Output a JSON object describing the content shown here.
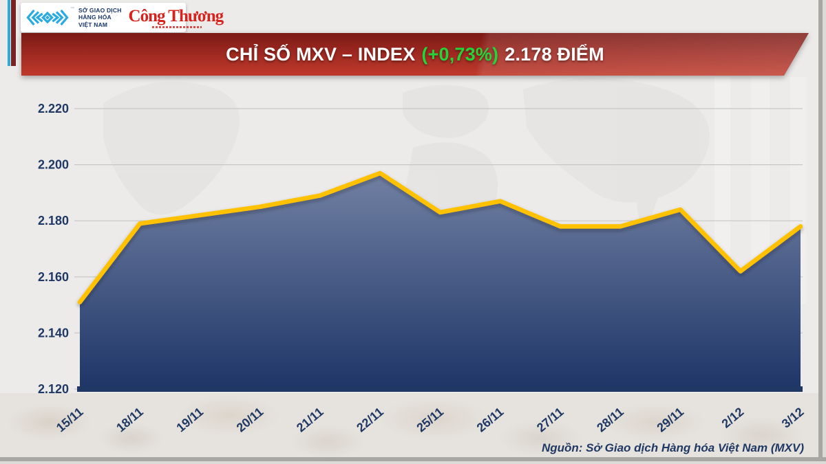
{
  "header": {
    "logo_panel": {
      "mxv_name_lines": [
        "SỞ GIAO DỊCH",
        "HÀNG HÓA",
        "VIỆT NAM"
      ],
      "trademark": "™",
      "congthuong_label": "Công Thương"
    },
    "accent_colors": {
      "cyan": "#2BAAE2",
      "maroon": "#7A2220",
      "logo_blue": "#29ABE2"
    }
  },
  "banner": {
    "title_prefix": "CHỈ SỐ MXV – INDEX",
    "change": "(+0,73%)",
    "title_suffix": "2.178 ĐIỂM",
    "change_color": "#24D53A",
    "bg_top": "#7B1A15",
    "bg_bottom": "#C03A2C"
  },
  "chart_data": {
    "type": "area",
    "title": "CHỈ SỐ MXV – INDEX (+0,73%) 2.178 ĐIỂM",
    "x": [
      "15/11",
      "18/11",
      "19/11",
      "20/11",
      "21/11",
      "22/11",
      "25/11",
      "26/11",
      "27/11",
      "28/11",
      "29/11",
      "2/12",
      "3/12"
    ],
    "values": [
      2.151,
      2.179,
      2.182,
      2.185,
      2.189,
      2.197,
      2.183,
      2.187,
      2.178,
      2.178,
      2.184,
      2.162,
      2.178
    ],
    "ylim": [
      2.12,
      2.22
    ],
    "ytick_step": 0.02,
    "ytick_labels": [
      "2.220",
      "2.200",
      "2.180",
      "2.160",
      "2.140",
      "2.120"
    ],
    "xlabel": "",
    "ylabel": "",
    "grid": true,
    "legend": false,
    "line_color": "#FFC100",
    "fill_top": "#8A97B5",
    "fill_bottom": "#1E3567",
    "axis_color": "#1F3864",
    "label_color": "#1F3864",
    "grid_color": "#C7C6C4"
  },
  "footer": {
    "source": "Nguồn: Sở Giao dịch Hàng hóa Việt Nam (MXV)"
  }
}
